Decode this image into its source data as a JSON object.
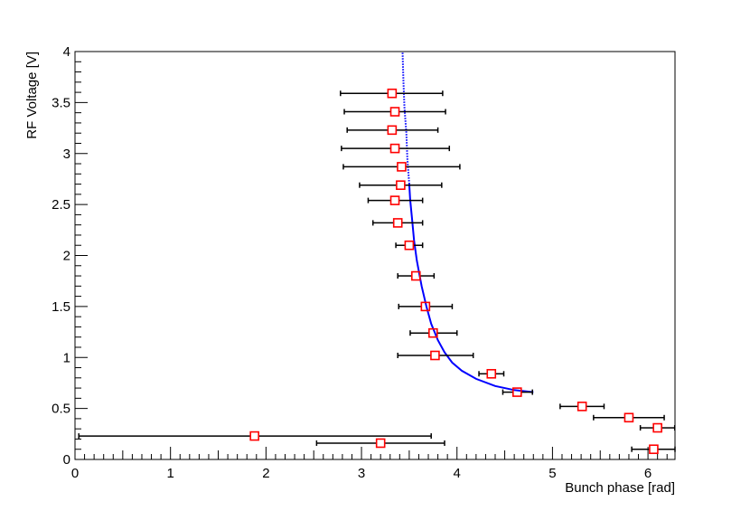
{
  "chart_data": {
    "type": "scatter",
    "xlabel": "Bunch phase [rad]",
    "ylabel": "RF Voltage [V]",
    "xlim": [
      0,
      6.283
    ],
    "ylim": [
      0,
      4
    ],
    "x_ticks": [
      0,
      1,
      2,
      3,
      4,
      5,
      6
    ],
    "y_ticks": [
      0,
      0.5,
      1,
      1.5,
      2,
      2.5,
      3,
      3.5,
      4
    ],
    "x_tick_labels": [
      "0",
      "1",
      "2",
      "3",
      "4",
      "5",
      "6"
    ],
    "y_tick_labels": [
      "0",
      "0.5",
      "1",
      "1.5",
      "2",
      "2.5",
      "3",
      "3.5",
      "4"
    ],
    "grid": false,
    "legend": "none",
    "marker_color": "#ff0000",
    "errorbar_color": "#000000",
    "fit_color": "#0000ff",
    "points": [
      {
        "x": 3.32,
        "y": 3.59,
        "xerr_low": 0.54,
        "xerr_high": 0.53
      },
      {
        "x": 3.35,
        "y": 3.41,
        "xerr_low": 0.53,
        "xerr_high": 0.53
      },
      {
        "x": 3.32,
        "y": 3.23,
        "xerr_low": 0.47,
        "xerr_high": 0.48
      },
      {
        "x": 3.35,
        "y": 3.05,
        "xerr_low": 0.56,
        "xerr_high": 0.57
      },
      {
        "x": 3.42,
        "y": 2.87,
        "xerr_low": 0.61,
        "xerr_high": 0.61
      },
      {
        "x": 3.41,
        "y": 2.69,
        "xerr_low": 0.43,
        "xerr_high": 0.43
      },
      {
        "x": 3.35,
        "y": 2.54,
        "xerr_low": 0.28,
        "xerr_high": 0.29
      },
      {
        "x": 3.38,
        "y": 2.32,
        "xerr_low": 0.26,
        "xerr_high": 0.26
      },
      {
        "x": 3.5,
        "y": 2.1,
        "xerr_low": 0.14,
        "xerr_high": 0.14
      },
      {
        "x": 3.57,
        "y": 1.8,
        "xerr_low": 0.19,
        "xerr_high": 0.19
      },
      {
        "x": 3.67,
        "y": 1.5,
        "xerr_low": 0.28,
        "xerr_high": 0.28
      },
      {
        "x": 3.75,
        "y": 1.24,
        "xerr_low": 0.24,
        "xerr_high": 0.25
      },
      {
        "x": 3.77,
        "y": 1.02,
        "xerr_low": 0.39,
        "xerr_high": 0.4
      },
      {
        "x": 4.36,
        "y": 0.84,
        "xerr_low": 0.13,
        "xerr_high": 0.13
      },
      {
        "x": 4.63,
        "y": 0.66,
        "xerr_low": 0.15,
        "xerr_high": 0.16
      },
      {
        "x": 5.31,
        "y": 0.52,
        "xerr_low": 0.23,
        "xerr_high": 0.23
      },
      {
        "x": 5.8,
        "y": 0.41,
        "xerr_low": 0.37,
        "xerr_high": 0.37
      },
      {
        "x": 6.1,
        "y": 0.31,
        "xerr_low": 0.18,
        "xerr_high": 0.18
      },
      {
        "x": 1.88,
        "y": 0.23,
        "xerr_low": 1.84,
        "xerr_high": 1.85
      },
      {
        "x": 3.2,
        "y": 0.16,
        "xerr_low": 0.67,
        "xerr_high": 0.67
      },
      {
        "x": 6.06,
        "y": 0.1,
        "xerr_low": 0.23,
        "xerr_high": 0.24
      }
    ],
    "fit_curve": {
      "style": "solid-with-dotted-upper",
      "points": [
        [
          4.8,
          0.66
        ],
        [
          4.6,
          0.68
        ],
        [
          4.4,
          0.72
        ],
        [
          4.2,
          0.79
        ],
        [
          4.05,
          0.87
        ],
        [
          3.95,
          0.95
        ],
        [
          3.87,
          1.05
        ],
        [
          3.8,
          1.17
        ],
        [
          3.73,
          1.33
        ],
        [
          3.68,
          1.5
        ],
        [
          3.63,
          1.7
        ],
        [
          3.58,
          1.95
        ],
        [
          3.55,
          2.15
        ],
        [
          3.53,
          2.35
        ],
        [
          3.51,
          2.55
        ],
        [
          3.5,
          2.7
        ],
        [
          3.48,
          2.95
        ],
        [
          3.47,
          3.2
        ],
        [
          3.45,
          3.45
        ],
        [
          3.44,
          3.7
        ],
        [
          3.43,
          4.0
        ]
      ],
      "dotted_above_y": 2.7
    }
  }
}
